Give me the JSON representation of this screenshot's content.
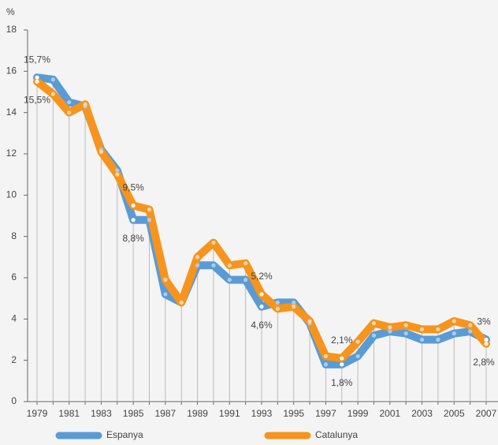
{
  "chart_data": {
    "type": "line",
    "y_label": "%",
    "categories": [
      "1979",
      null,
      "1981",
      null,
      "1983",
      null,
      "1985",
      null,
      "1987",
      null,
      "1989",
      null,
      "1991",
      null,
      "1993",
      null,
      "1995",
      null,
      "1997",
      null,
      "1999",
      null,
      "2001",
      null,
      "2003",
      null,
      "2005",
      null,
      "2007"
    ],
    "series": [
      {
        "name": "Espanya",
        "color": "#5b9bd5",
        "values": [
          15.7,
          15.6,
          14.5,
          14.3,
          12.2,
          11.2,
          8.8,
          8.8,
          5.2,
          4.8,
          6.6,
          6.6,
          5.9,
          5.9,
          4.6,
          4.8,
          4.8,
          3.8,
          1.8,
          1.8,
          2.2,
          3.2,
          3.4,
          3.3,
          3.0,
          3.0,
          3.3,
          3.4,
          3.0
        ],
        "value_labels": [
          "15,7%",
          null,
          null,
          null,
          null,
          null,
          "8,8%",
          null,
          null,
          null,
          null,
          null,
          null,
          null,
          "4,6%",
          null,
          null,
          null,
          null,
          "1,8%",
          null,
          null,
          null,
          null,
          null,
          null,
          null,
          null,
          "3%"
        ]
      },
      {
        "name": "Catalunya",
        "color": "#f7941d",
        "values": [
          15.5,
          14.9,
          14.0,
          14.4,
          12.1,
          11.0,
          9.5,
          9.3,
          5.9,
          4.8,
          7.0,
          7.7,
          6.6,
          6.7,
          5.2,
          4.5,
          4.6,
          3.9,
          2.2,
          2.1,
          2.9,
          3.8,
          3.6,
          3.7,
          3.5,
          3.5,
          3.9,
          3.7,
          2.8
        ],
        "value_labels": [
          "15,5%",
          null,
          null,
          null,
          null,
          null,
          "9,5%",
          null,
          null,
          null,
          null,
          null,
          null,
          null,
          "5,2%",
          null,
          null,
          null,
          null,
          "2,1%",
          null,
          null,
          null,
          null,
          null,
          null,
          null,
          null,
          "2,8%"
        ]
      }
    ],
    "ylim": [
      0,
      18
    ],
    "yticks": [
      0,
      2,
      4,
      6,
      8,
      10,
      12,
      14,
      16,
      18
    ],
    "drop_lines": true
  }
}
